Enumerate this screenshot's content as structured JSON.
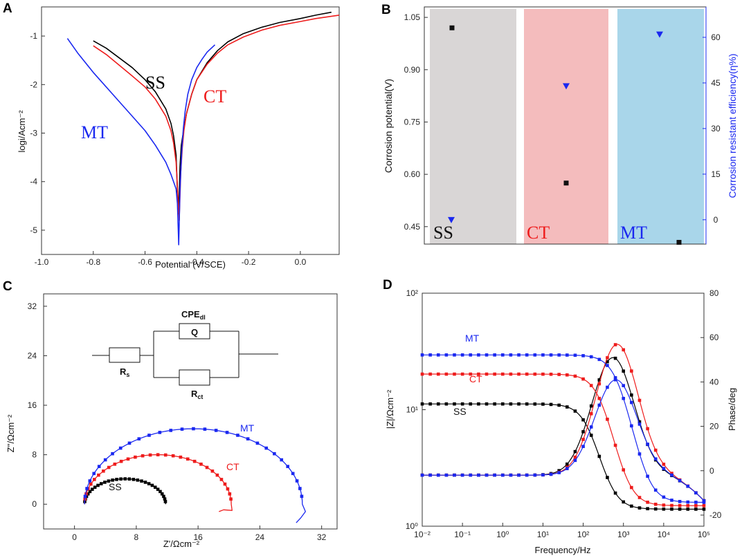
{
  "colors": {
    "black": "#000000",
    "red": "#ee1c1c",
    "blue": "#1a28f0",
    "gray_band": "#d9d6d6",
    "red_band": "#f4bcbd",
    "blue_band": "#a9d6ea"
  },
  "chart_data": [
    {
      "panel": "A",
      "type": "line",
      "xlabel": "Potential (V/SCE)",
      "ylabel": "logi/Acm⁻²",
      "xlim": [
        -1.0,
        0.15
      ],
      "ylim": [
        -5.5,
        -0.4
      ],
      "xticks": [
        "-1.0",
        "-0.8",
        "-0.6",
        "-0.4",
        "-0.2",
        "0.0"
      ],
      "yticks": [
        "-1",
        "-2",
        "-3",
        "-4",
        "-5"
      ],
      "annotations": [
        "SS",
        "CT",
        "MT"
      ],
      "series": [
        {
          "name": "SS",
          "color": "#000000",
          "x": [
            -0.8,
            -0.75,
            -0.7,
            -0.65,
            -0.6,
            -0.56,
            -0.52,
            -0.5,
            -0.49,
            -0.48,
            -0.475,
            -0.47,
            -0.465,
            -0.46,
            -0.45,
            -0.44,
            -0.42,
            -0.4,
            -0.36,
            -0.32,
            -0.28,
            -0.22,
            -0.15,
            -0.08,
            0.0,
            0.06,
            0.12
          ],
          "y": [
            -1.1,
            -1.25,
            -1.45,
            -1.65,
            -1.9,
            -2.15,
            -2.5,
            -2.8,
            -3.05,
            -3.45,
            -4.2,
            -4.66,
            -3.7,
            -3.25,
            -2.9,
            -2.6,
            -2.2,
            -1.9,
            -1.55,
            -1.3,
            -1.12,
            -0.95,
            -0.82,
            -0.72,
            -0.64,
            -0.57,
            -0.51
          ]
        },
        {
          "name": "CT",
          "color": "#ee1c1c",
          "x": [
            -0.8,
            -0.75,
            -0.7,
            -0.65,
            -0.6,
            -0.56,
            -0.52,
            -0.5,
            -0.49,
            -0.48,
            -0.475,
            -0.468,
            -0.462,
            -0.456,
            -0.45,
            -0.44,
            -0.42,
            -0.4,
            -0.36,
            -0.32,
            -0.28,
            -0.22,
            -0.15,
            -0.08,
            0.0,
            0.06,
            0.15
          ],
          "y": [
            -1.2,
            -1.38,
            -1.6,
            -1.82,
            -2.05,
            -2.3,
            -2.65,
            -2.95,
            -3.2,
            -3.6,
            -4.1,
            -4.8,
            -3.8,
            -3.3,
            -2.95,
            -2.6,
            -2.2,
            -1.9,
            -1.58,
            -1.35,
            -1.18,
            -1.02,
            -0.88,
            -0.78,
            -0.7,
            -0.64,
            -0.57
          ]
        },
        {
          "name": "MT",
          "color": "#1a28f0",
          "x": [
            -0.9,
            -0.86,
            -0.8,
            -0.75,
            -0.7,
            -0.65,
            -0.6,
            -0.56,
            -0.52,
            -0.5,
            -0.49,
            -0.48,
            -0.475,
            -0.47,
            -0.465,
            -0.462,
            -0.458,
            -0.452,
            -0.445,
            -0.435,
            -0.42,
            -0.4,
            -0.38,
            -0.36,
            -0.33
          ],
          "y": [
            -1.05,
            -1.35,
            -1.75,
            -2.05,
            -2.35,
            -2.65,
            -2.95,
            -3.25,
            -3.6,
            -3.85,
            -4.0,
            -4.15,
            -4.45,
            -5.3,
            -4.2,
            -3.8,
            -3.35,
            -2.9,
            -2.55,
            -2.2,
            -1.9,
            -1.65,
            -1.48,
            -1.33,
            -1.18
          ]
        }
      ]
    },
    {
      "panel": "B",
      "type": "scatter",
      "ylabel": "Corrosion potential(V)",
      "ylabel_right": "Corrosion resistant efficiency(η%)",
      "categories": [
        "SS",
        "CT",
        "MT"
      ],
      "ylim": [
        0.4,
        1.08
      ],
      "ylim_right": [
        -8,
        70
      ],
      "yticks": [
        "0.45",
        "0.60",
        "0.75",
        "0.90",
        "1.05"
      ],
      "yticks_right": [
        "0",
        "15",
        "30",
        "45",
        "60"
      ],
      "potential": [
        1.02,
        0.575,
        0.405
      ],
      "efficiency": [
        0,
        44,
        61
      ]
    },
    {
      "panel": "C",
      "type": "scatter",
      "xlabel": "Z'/Ωcm⁻²",
      "ylabel": "Z''/Ωcm⁻²",
      "xlim": [
        -4,
        34
      ],
      "ylim": [
        -4,
        34
      ],
      "xticks": [
        "0",
        "8",
        "16",
        "24",
        "32"
      ],
      "yticks": [
        "0",
        "8",
        "16",
        "24",
        "32"
      ],
      "circuit": {
        "cpe": "CPE",
        "cpe_sub": "dl",
        "q": "Q",
        "rs": "R",
        "rs_sub": "s",
        "rct": "R",
        "rct_sub": "ct"
      },
      "series": [
        {
          "name": "SS",
          "color": "#000000",
          "rs": 1.3,
          "rct": 10.5,
          "max_imag": 4.1
        },
        {
          "name": "CT",
          "color": "#ee1c1c",
          "rs": 1.3,
          "rct": 19.0,
          "max_imag": 8.0
        },
        {
          "name": "MT",
          "color": "#1a28f0",
          "rs": 1.3,
          "rct": 28.2,
          "max_imag": 12.2
        }
      ]
    },
    {
      "panel": "D",
      "type": "line",
      "xlabel": "Frequency/Hz",
      "ylabel": "|Z|/Ωcm⁻²",
      "ylabel_right": "Phase/deg",
      "xlim_log10": [
        -2,
        5
      ],
      "ylim_log10": [
        0,
        2
      ],
      "ylim_right": [
        -25,
        80
      ],
      "xticks": [
        "10⁻²",
        "10⁻¹",
        "10⁰",
        "10¹",
        "10²",
        "10³",
        "10⁴",
        "10⁵"
      ],
      "yticks": [
        "10⁰",
        "10¹",
        "10²"
      ],
      "yticks_right": [
        "-20",
        "0",
        "20",
        "40",
        "60",
        "80"
      ],
      "series": [
        {
          "name": "SS",
          "color": "#000000",
          "z_low": 11.2,
          "z_high": 1.4,
          "f_c": 150,
          "phase_peak": 51,
          "phase_peak_f": 550
        },
        {
          "name": "CT",
          "color": "#ee1c1c",
          "z_low": 20.2,
          "z_high": 1.5,
          "f_c": 300,
          "phase_peak": 57,
          "phase_peak_f": 700
        },
        {
          "name": "MT",
          "color": "#1a28f0",
          "z_low": 29.5,
          "z_high": 1.6,
          "f_c": 800,
          "phase_peak": 41,
          "phase_peak_f": 650
        }
      ]
    }
  ],
  "panel_labels": {
    "A": "A",
    "B": "B",
    "C": "C",
    "D": "D"
  },
  "labels": {
    "ss": "SS",
    "ct": "CT",
    "mt": "MT"
  }
}
